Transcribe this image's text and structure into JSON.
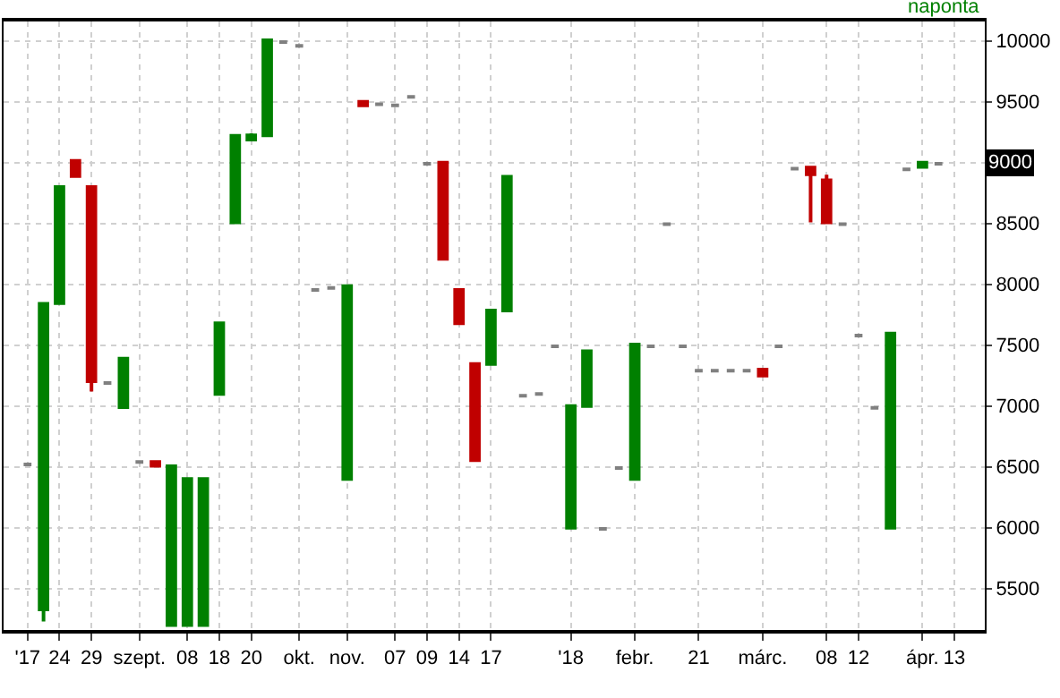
{
  "chart_data": {
    "type": "candlestick",
    "categories": [
      "'17",
      null,
      "24",
      null,
      "29",
      null,
      null,
      "szept.",
      null,
      null,
      "08",
      null,
      "18",
      null,
      "20",
      null,
      null,
      "okt.",
      null,
      null,
      "nov.",
      null,
      null,
      "07",
      null,
      "09",
      null,
      "14",
      null,
      "17",
      null,
      null,
      null,
      null,
      "'18",
      null,
      null,
      null,
      "febr.",
      null,
      null,
      null,
      "21",
      null,
      null,
      null,
      "márc.",
      null,
      null,
      null,
      "08",
      null,
      "12",
      null,
      null,
      null,
      "ápr.",
      null,
      "13",
      null
    ],
    "ohlc": [
      [
        6520,
        6520,
        6520,
        6520
      ],
      [
        5330,
        7840,
        5230,
        7840
      ],
      [
        7845,
        8800,
        7845,
        8800
      ],
      [
        9015,
        9015,
        8890,
        8890
      ],
      [
        8800,
        8800,
        7120,
        7205
      ],
      [
        7190,
        7190,
        7190,
        7190
      ],
      [
        6990,
        7390,
        6990,
        7390
      ],
      [
        6540,
        6540,
        6540,
        6540
      ],
      [
        6540,
        6540,
        6510,
        6510
      ],
      [
        5200,
        6505,
        5200,
        6505
      ],
      [
        5200,
        6400,
        5200,
        6400
      ],
      [
        5200,
        6400,
        5200,
        6400
      ],
      [
        7100,
        7680,
        7100,
        7680
      ],
      [
        8510,
        9235,
        8510,
        9220
      ],
      [
        9190,
        9240,
        9190,
        9225
      ],
      [
        9225,
        10005,
        9225,
        10005
      ],
      [
        9990,
        9990,
        9990,
        9990
      ],
      [
        9960,
        9960,
        9960,
        9960
      ],
      [
        7955,
        7955,
        7955,
        7955
      ],
      [
        7970,
        7970,
        7970,
        7970
      ],
      [
        6400,
        7985,
        6400,
        7985
      ],
      [
        9500,
        9500,
        9470,
        9470
      ],
      [
        9480,
        9480,
        9480,
        9480
      ],
      [
        9470,
        9470,
        9470,
        9470
      ],
      [
        9540,
        9540,
        9540,
        9540
      ],
      [
        8990,
        8990,
        8990,
        8990
      ],
      [
        9000,
        9015,
        8210,
        8210
      ],
      [
        7955,
        7955,
        7680,
        7680
      ],
      [
        7345,
        7345,
        6540,
        6555
      ],
      [
        7345,
        7785,
        7345,
        7785
      ],
      [
        7785,
        8885,
        7785,
        8885
      ],
      [
        7085,
        7085,
        7085,
        7085
      ],
      [
        7100,
        7100,
        7100,
        7100
      ],
      [
        7490,
        7490,
        7490,
        7490
      ],
      [
        6000,
        7000,
        6000,
        7000
      ],
      [
        7000,
        7450,
        7000,
        7450
      ],
      [
        5990,
        5990,
        5990,
        5990
      ],
      [
        6490,
        6490,
        6490,
        6490
      ],
      [
        6400,
        7505,
        6400,
        7505
      ],
      [
        7490,
        7490,
        7490,
        7490
      ],
      [
        8495,
        8495,
        8495,
        8495
      ],
      [
        7490,
        7490,
        7490,
        7490
      ],
      [
        7290,
        7290,
        7290,
        7290
      ],
      [
        7290,
        7290,
        7290,
        7290
      ],
      [
        7290,
        7290,
        7290,
        7290
      ],
      [
        7290,
        7290,
        7290,
        7290
      ],
      [
        7300,
        7300,
        7250,
        7250
      ],
      [
        7490,
        7490,
        7490,
        7490
      ],
      [
        8950,
        8950,
        8950,
        8950
      ],
      [
        8960,
        8960,
        8510,
        8905
      ],
      [
        8855,
        8900,
        8510,
        8510
      ],
      [
        8495,
        8495,
        8495,
        8495
      ],
      [
        7580,
        7580,
        7580,
        7580
      ],
      [
        6985,
        6985,
        6985,
        6985
      ],
      [
        6000,
        7595,
        6000,
        7595
      ],
      [
        8945,
        8945,
        8945,
        8945
      ],
      [
        8965,
        9000,
        8965,
        9000
      ],
      [
        8990,
        8990,
        8990,
        8990
      ],
      null,
      null
    ],
    "colors": [
      "#808080",
      "#008000",
      "#008000",
      "#c00000",
      "#c00000",
      "#808080",
      "#008000",
      "#808080",
      "#c00000",
      "#008000",
      "#008000",
      "#008000",
      "#008000",
      "#008000",
      "#008000",
      "#008000",
      "#808080",
      "#808080",
      "#808080",
      "#808080",
      "#008000",
      "#c00000",
      "#808080",
      "#808080",
      "#808080",
      "#808080",
      "#c00000",
      "#c00000",
      "#c00000",
      "#008000",
      "#008000",
      "#808080",
      "#808080",
      "#808080",
      "#008000",
      "#008000",
      "#808080",
      "#808080",
      "#008000",
      "#808080",
      "#808080",
      "#808080",
      "#808080",
      "#808080",
      "#808080",
      "#808080",
      "#c00000",
      "#808080",
      "#808080",
      "#c00000",
      "#c00000",
      "#808080",
      "#808080",
      "#808080",
      "#008000",
      "#808080",
      "#008000",
      "#808080",
      null,
      null
    ],
    "ylim": [
      5160,
      10160
    ],
    "yticks": [
      5500,
      6000,
      6500,
      7000,
      7500,
      8000,
      8500,
      {
        "value": 9000,
        "label": null
      },
      9500,
      10000
    ],
    "grid": true,
    "annotations": [
      "naponta",
      {
        "text": "9000",
        "y": 9000
      }
    ]
  }
}
